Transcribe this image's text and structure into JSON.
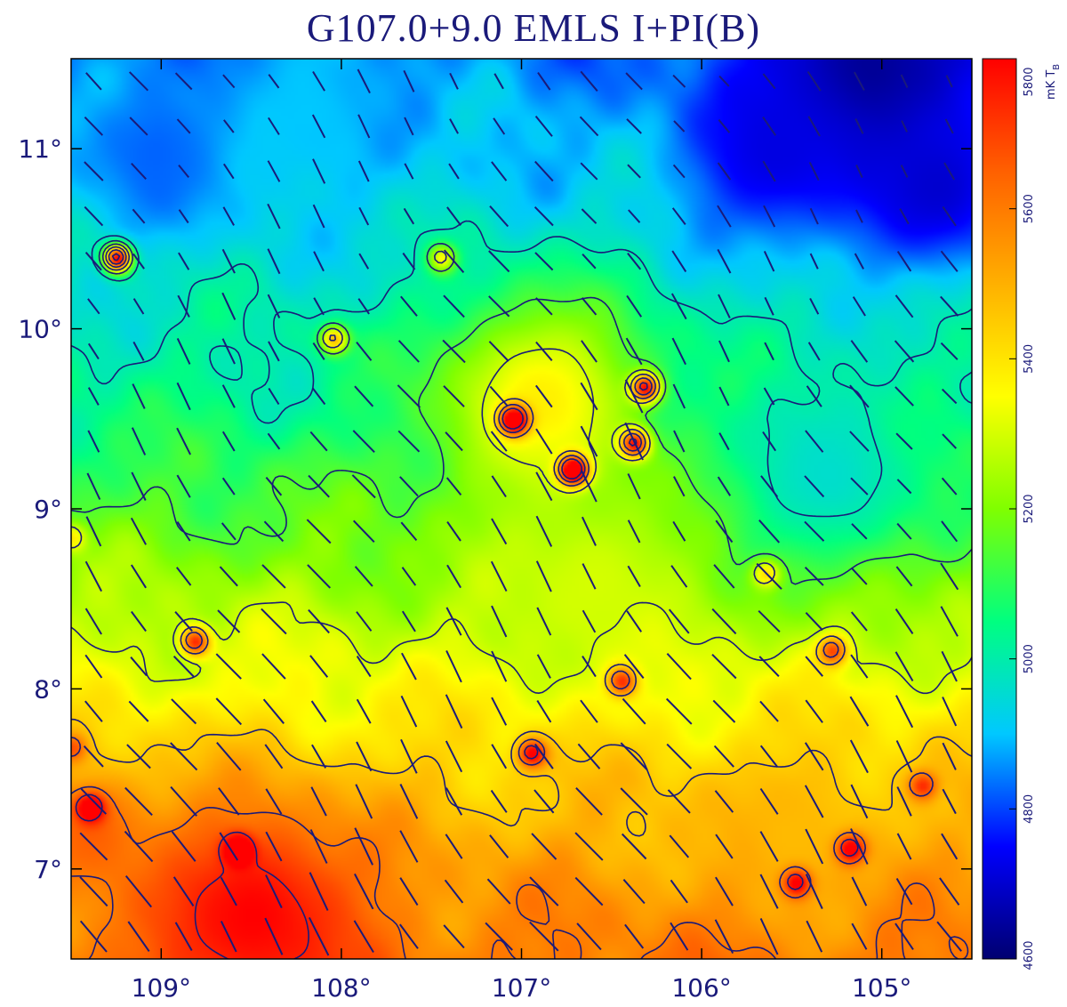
{
  "chart_data": {
    "type": "heatmap",
    "title": "G107.0+9.0 EMLS I+PI(B)",
    "xlim": [
      109.5,
      104.5
    ],
    "ylim": [
      6.5,
      11.5
    ],
    "x_ticks": [
      {
        "value": 109,
        "label": "109°"
      },
      {
        "value": 108,
        "label": "108°"
      },
      {
        "value": 107,
        "label": "107°"
      },
      {
        "value": 106,
        "label": "106°"
      },
      {
        "value": 105,
        "label": "105°"
      }
    ],
    "y_ticks": [
      {
        "value": 7,
        "label": "7°"
      },
      {
        "value": 8,
        "label": "8°"
      },
      {
        "value": 9,
        "label": "9°"
      },
      {
        "value": 10,
        "label": "10°"
      },
      {
        "value": 11,
        "label": "11°"
      }
    ],
    "colorbar": {
      "label": "mK T",
      "label_subscript": "B",
      "range": [
        4600,
        5800
      ],
      "ticks": [
        {
          "value": 4600,
          "label": "4600"
        },
        {
          "value": 4800,
          "label": "4800"
        },
        {
          "value": 5000,
          "label": "5000"
        },
        {
          "value": 5200,
          "label": "5200"
        },
        {
          "value": 5400,
          "label": "5400"
        },
        {
          "value": 5600,
          "label": "5600"
        },
        {
          "value": 5800,
          "label": "5800"
        }
      ],
      "colormap": [
        "#000070",
        "#0000ff",
        "#00c8ff",
        "#00ff80",
        "#80ff00",
        "#ffff00",
        "#ffb000",
        "#ff6000",
        "#ff0000"
      ]
    },
    "field": {
      "background_gradient": [
        {
          "y": 6.5,
          "value": 5600
        },
        {
          "y": 7.5,
          "value": 5450
        },
        {
          "y": 8.5,
          "value": 5250
        },
        {
          "y": 9.5,
          "value": 5050
        },
        {
          "y": 10.5,
          "value": 4950
        },
        {
          "y": 11.5,
          "value": 4850
        }
      ],
      "regions": [
        {
          "x": 105.1,
          "y": 11.4,
          "value": 4620,
          "radius": 0.75
        },
        {
          "x": 105.6,
          "y": 11.0,
          "value": 4720,
          "radius": 0.6
        },
        {
          "x": 104.7,
          "y": 10.8,
          "value": 4700,
          "radius": 0.55
        },
        {
          "x": 109.0,
          "y": 11.0,
          "value": 4820,
          "radius": 0.55
        },
        {
          "x": 108.2,
          "y": 11.2,
          "value": 4900,
          "radius": 0.6
        },
        {
          "x": 106.9,
          "y": 9.6,
          "value": 5380,
          "radius": 0.7
        },
        {
          "x": 106.6,
          "y": 8.6,
          "value": 5300,
          "radius": 0.6
        },
        {
          "x": 105.3,
          "y": 9.2,
          "value": 4960,
          "radius": 0.65
        },
        {
          "x": 108.5,
          "y": 6.75,
          "value": 5800,
          "radius": 0.7
        },
        {
          "x": 109.4,
          "y": 7.2,
          "value": 5650,
          "radius": 0.4
        },
        {
          "x": 105.5,
          "y": 7.2,
          "value": 5480,
          "radius": 0.5
        }
      ],
      "point_sources": [
        {
          "x": 109.25,
          "y": 10.4,
          "value": 5750
        },
        {
          "x": 108.05,
          "y": 9.95,
          "value": 5400
        },
        {
          "x": 107.45,
          "y": 10.4,
          "value": 5200
        },
        {
          "x": 107.05,
          "y": 9.5,
          "value": 5650
        },
        {
          "x": 106.72,
          "y": 9.22,
          "value": 5800
        },
        {
          "x": 106.32,
          "y": 9.68,
          "value": 5620
        },
        {
          "x": 106.38,
          "y": 9.37,
          "value": 5600
        },
        {
          "x": 105.65,
          "y": 8.65,
          "value": 5420
        },
        {
          "x": 108.82,
          "y": 8.27,
          "value": 5700
        },
        {
          "x": 105.28,
          "y": 8.22,
          "value": 5620
        },
        {
          "x": 106.95,
          "y": 7.65,
          "value": 5750
        },
        {
          "x": 106.45,
          "y": 8.05,
          "value": 5650
        },
        {
          "x": 109.4,
          "y": 7.35,
          "value": 5720
        },
        {
          "x": 108.58,
          "y": 7.12,
          "value": 5750
        },
        {
          "x": 105.48,
          "y": 6.93,
          "value": 5800
        },
        {
          "x": 105.18,
          "y": 7.12,
          "value": 5800
        },
        {
          "x": 104.78,
          "y": 7.47,
          "value": 5650
        },
        {
          "x": 109.5,
          "y": 7.68,
          "value": 5550
        },
        {
          "x": 109.5,
          "y": 8.85,
          "value": 5300
        }
      ]
    },
    "contours": {
      "levels": [
        5000,
        5150,
        5300,
        5450,
        5600,
        5750
      ],
      "color": "#1a1a7a"
    },
    "vectors": {
      "color": "#1a1a7a",
      "grid_spacing_deg": 0.25,
      "angle_north_deg": 35,
      "length_scale": "polarized intensity"
    }
  }
}
